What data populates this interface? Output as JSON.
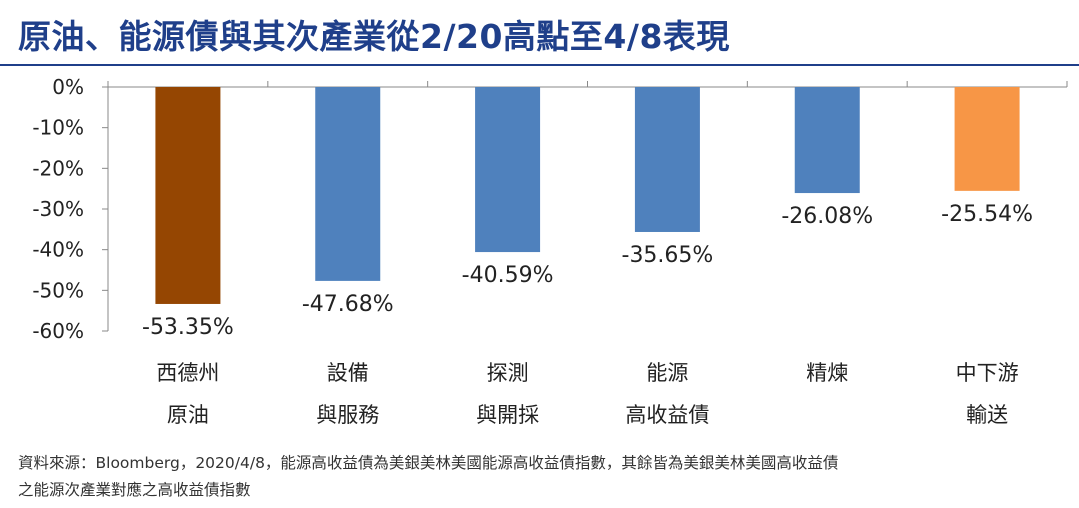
{
  "title": "原油、能源債與其次產業從2/20高點至4/8表現",
  "source_lines": [
    "資料來源：Bloomberg，2020/4/8，能源高收益債為美銀美林美國能源高收益債指數，其餘皆為美銀美林美國高收益債",
    "之能源次產業對應之高收益債指數"
  ],
  "colors": {
    "title": "#1f3f8a",
    "oil": "#954602",
    "blue": "#4f81bd",
    "orange": "#f79646"
  },
  "chart_data": {
    "type": "bar",
    "categories": [
      [
        "西德州",
        "原油"
      ],
      [
        "設備",
        "與服務"
      ],
      [
        "探測",
        "與開採"
      ],
      [
        "能源",
        "高收益債"
      ],
      [
        "精煉",
        ""
      ],
      [
        "中下游",
        "輸送"
      ]
    ],
    "values": [
      -53.35,
      -47.68,
      -40.59,
      -35.65,
      -26.08,
      -25.54
    ],
    "data_labels": [
      "-53.35%",
      "-47.68%",
      "-40.59%",
      "-35.65%",
      "-26.08%",
      "-25.54%"
    ],
    "bar_colors": [
      "#954602",
      "#4f81bd",
      "#4f81bd",
      "#4f81bd",
      "#4f81bd",
      "#f79646"
    ],
    "y_ticks": [
      0,
      -10,
      -20,
      -30,
      -40,
      -50,
      -60
    ],
    "y_tick_labels": [
      "0%",
      "-10%",
      "-20%",
      "-30%",
      "-40%",
      "-50%",
      "-60%"
    ],
    "ylim": [
      -60,
      0
    ],
    "grid": false,
    "legend": "none"
  }
}
